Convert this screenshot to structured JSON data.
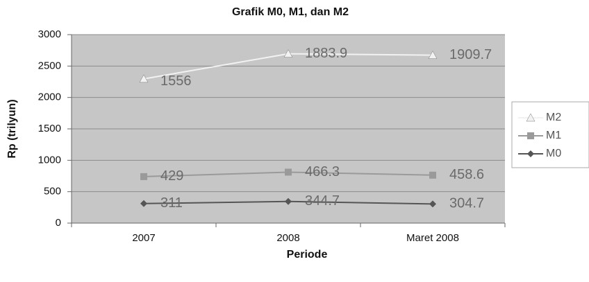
{
  "chart_data": {
    "type": "line",
    "stacked": true,
    "title": "Grafik M0, M1, dan M2",
    "x_label": "Periode",
    "y_label": "Rp (trilyun)",
    "categories": [
      "2007",
      "2008",
      "Maret 2008"
    ],
    "series": [
      {
        "name": "M0",
        "color": "#555555",
        "marker": "diamond",
        "values": [
          311,
          344.7,
          304.7
        ]
      },
      {
        "name": "M1",
        "color": "#9a9a9a",
        "marker": "square",
        "values": [
          429,
          466.3,
          458.6
        ]
      },
      {
        "name": "M2",
        "color": "#f2f2f2",
        "marker": "triangle",
        "values": [
          1556,
          1883.9,
          1909.7
        ]
      }
    ],
    "ylim": [
      0,
      3000
    ],
    "yticks": [
      0,
      500,
      1000,
      1500,
      2000,
      2500,
      3000
    ],
    "grid": true,
    "legend": "right"
  }
}
